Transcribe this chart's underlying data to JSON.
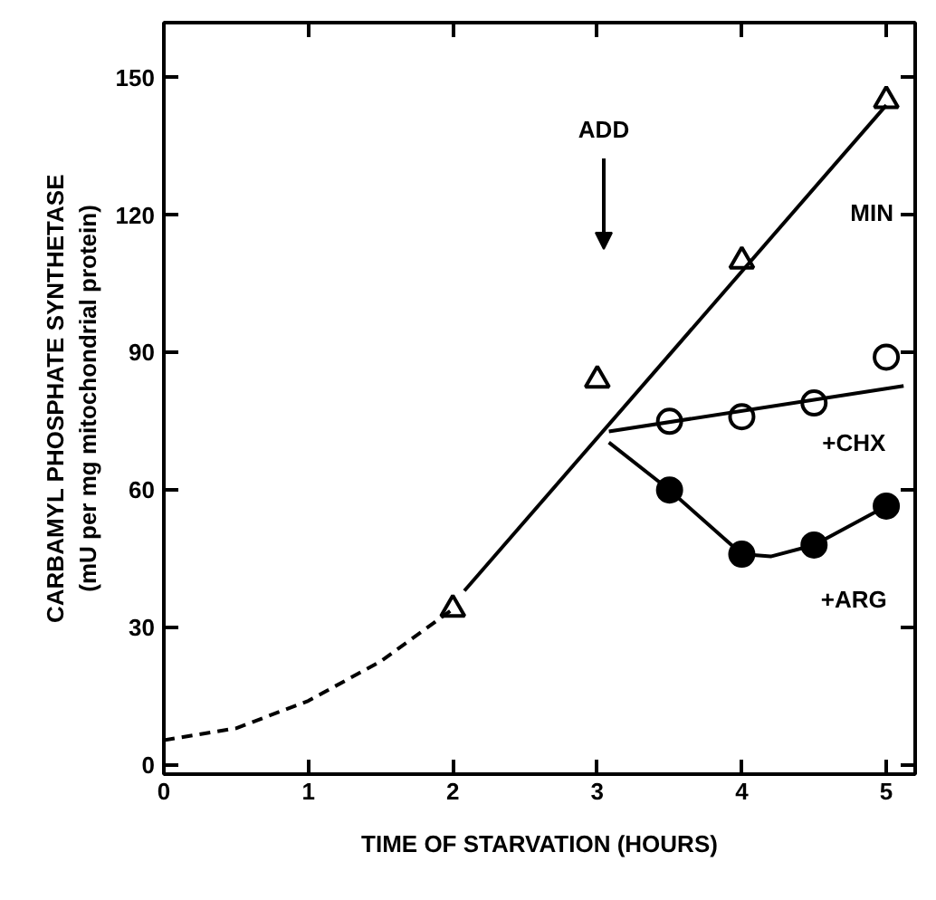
{
  "chart_data": {
    "type": "scatter",
    "xlabel": "TIME OF STARVATION (HOURS)",
    "ylabel": "CARBAMYL PHOSPHATE SYNTHETASE\n(mU per mg mitochondrial protein)",
    "xlim": [
      0,
      5.2
    ],
    "ylim": [
      -2,
      162
    ],
    "xticks": [
      0,
      1,
      2,
      3,
      4,
      5
    ],
    "yticks": [
      0,
      30,
      60,
      90,
      120,
      150
    ],
    "legend": "right",
    "series": [
      {
        "name": "MIN",
        "marker": "triangle",
        "color": "#000000",
        "x": [
          2,
          3,
          4,
          5
        ],
        "values": [
          34,
          84,
          110,
          145
        ]
      },
      {
        "name": "+CHX",
        "marker": "circle",
        "color": "#000000",
        "x": [
          3.5,
          4,
          4.5,
          5
        ],
        "values": [
          75,
          76,
          79,
          89
        ]
      },
      {
        "name": "+ARG",
        "marker": "circle",
        "color": "#000000",
        "x": [
          3.5,
          4,
          4.5,
          5
        ],
        "values": [
          60,
          46,
          48,
          56.5
        ]
      },
      {
        "type": "line",
        "line_style": "dashed",
        "color": "#000000",
        "x": [
          0,
          0.5,
          1,
          1.5,
          2
        ],
        "values": [
          5.4,
          8,
          14,
          22.6,
          34
        ]
      },
      {
        "type": "line",
        "line_style": "solid",
        "color": "#000000",
        "x": [
          2.08,
          5
        ],
        "values": [
          38,
          144
        ]
      },
      {
        "type": "line",
        "line_style": "solid",
        "color": "#000000",
        "x": [
          3.08,
          5.12
        ],
        "values": [
          72.8,
          82.7
        ]
      },
      {
        "type": "line",
        "line_style": "solid",
        "color": "#000000",
        "x": [
          3.08,
          3.5,
          4,
          4.2,
          4.5,
          5
        ],
        "values": [
          70.4,
          60,
          46,
          45.5,
          48,
          56.5
        ]
      }
    ],
    "annotations": [
      "ADD"
    ]
  }
}
